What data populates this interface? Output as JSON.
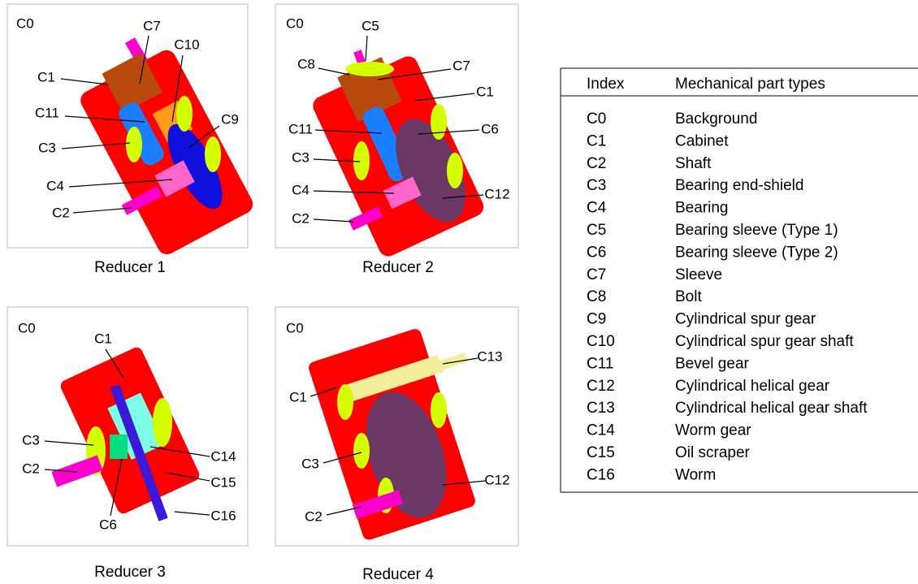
{
  "panels": [
    {
      "caption": "Reducer 1",
      "labels": [
        "C0",
        "C7",
        "C10",
        "C1",
        "C11",
        "C9",
        "C3",
        "C4",
        "C2"
      ]
    },
    {
      "caption": "Reducer 2",
      "labels": [
        "C0",
        "C5",
        "C8",
        "C7",
        "C1",
        "C11",
        "C6",
        "C3",
        "C4",
        "C12",
        "C2"
      ]
    },
    {
      "caption": "Reducer 3",
      "labels": [
        "C0",
        "C1",
        "C3",
        "C14",
        "C2",
        "C15",
        "C6",
        "C16"
      ]
    },
    {
      "caption": "Reducer 4",
      "labels": [
        "C0",
        "C13",
        "C1",
        "C3",
        "C12",
        "C2"
      ]
    }
  ],
  "table": {
    "header": [
      "Index",
      "Mechanical part types"
    ],
    "rows": [
      [
        "C0",
        "Background"
      ],
      [
        "C1",
        "Cabinet"
      ],
      [
        "C2",
        "Shaft"
      ],
      [
        "C3",
        "Bearing end-shield"
      ],
      [
        "C4",
        "Bearing"
      ],
      [
        "C5",
        "Bearing sleeve (Type 1)"
      ],
      [
        "C6",
        "Bearing sleeve (Type 2)"
      ],
      [
        "C7",
        "Sleeve"
      ],
      [
        "C8",
        "Bolt"
      ],
      [
        "C9",
        "Cylindrical spur gear"
      ],
      [
        "C10",
        "Cylindrical spur gear shaft"
      ],
      [
        "C11",
        "Bevel gear"
      ],
      [
        "C12",
        "Cylindrical helical gear"
      ],
      [
        "C13",
        "Cylindrical helical gear shaft"
      ],
      [
        "C14",
        "Worm gear"
      ],
      [
        "C15",
        "Oil scraper"
      ],
      [
        "C16",
        "Worm"
      ]
    ]
  }
}
